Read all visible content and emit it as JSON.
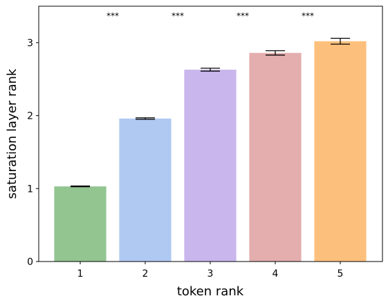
{
  "chart_data": {
    "type": "bar",
    "x_label": "token rank",
    "y_label": "saturation layer rank",
    "categories": [
      "1",
      "2",
      "3",
      "4",
      "5"
    ],
    "values": [
      1.03,
      1.96,
      2.63,
      2.86,
      3.02
    ],
    "errors": [
      0.005,
      0.01,
      0.02,
      0.03,
      0.04
    ],
    "colors": [
      "#93c590",
      "#b0c9f2",
      "#c9b6ec",
      "#e4aeae",
      "#fdc07c"
    ],
    "annotations": [
      "***",
      "***",
      "***",
      "***"
    ],
    "ylim": [
      0,
      3.5
    ],
    "yticks": [
      0,
      1,
      2,
      3
    ],
    "grid": false
  }
}
